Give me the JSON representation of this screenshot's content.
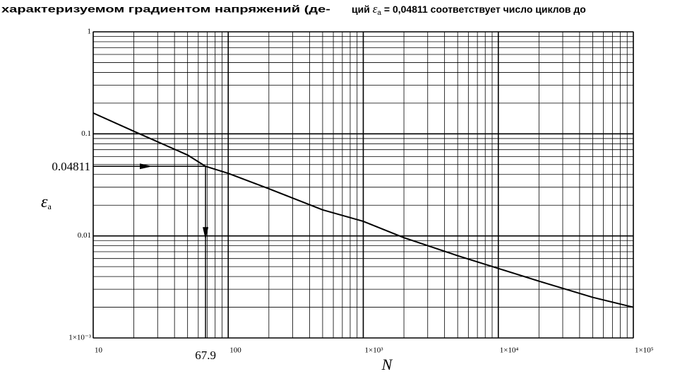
{
  "header": {
    "left": "характеризуемом градиентом напряжений (де-",
    "right_parts": [
      "ций ",
      "ε",
      "а",
      " = 0,04811 соответствует число циклов до"
    ]
  },
  "chart_data": {
    "type": "line",
    "x": [
      10,
      20,
      50,
      67.9,
      100,
      200,
      500,
      1000,
      2000,
      5000,
      10000,
      20000,
      50000,
      100000
    ],
    "series": [
      {
        "color": "#000000",
        "values": [
          0.16,
          0.106,
          0.062,
          0.04811,
          0.041,
          0.029,
          0.018,
          0.0139,
          0.0096,
          0.0064,
          0.0048,
          0.0036,
          0.0025,
          0.002
        ]
      }
    ],
    "xlim": [
      10,
      100000
    ],
    "ylim": [
      0.001,
      1
    ],
    "xscale": "log",
    "yscale": "log",
    "xticks": [
      10,
      100,
      {
        "value": 1000,
        "label": "1×10³"
      },
      {
        "value": 10000,
        "label": "1×10⁴"
      },
      {
        "value": 100000,
        "label": "1×10⁵"
      }
    ],
    "yticks": [
      {
        "value": 0.001,
        "label": "1×10⁻³"
      },
      0.01,
      0.1,
      1
    ],
    "x_label": "N",
    "y_label": "ε",
    "y_label_sub": "а",
    "marker": {
      "x": 67.9,
      "y": 0.04811
    },
    "grid": true,
    "minor_grid": true
  }
}
